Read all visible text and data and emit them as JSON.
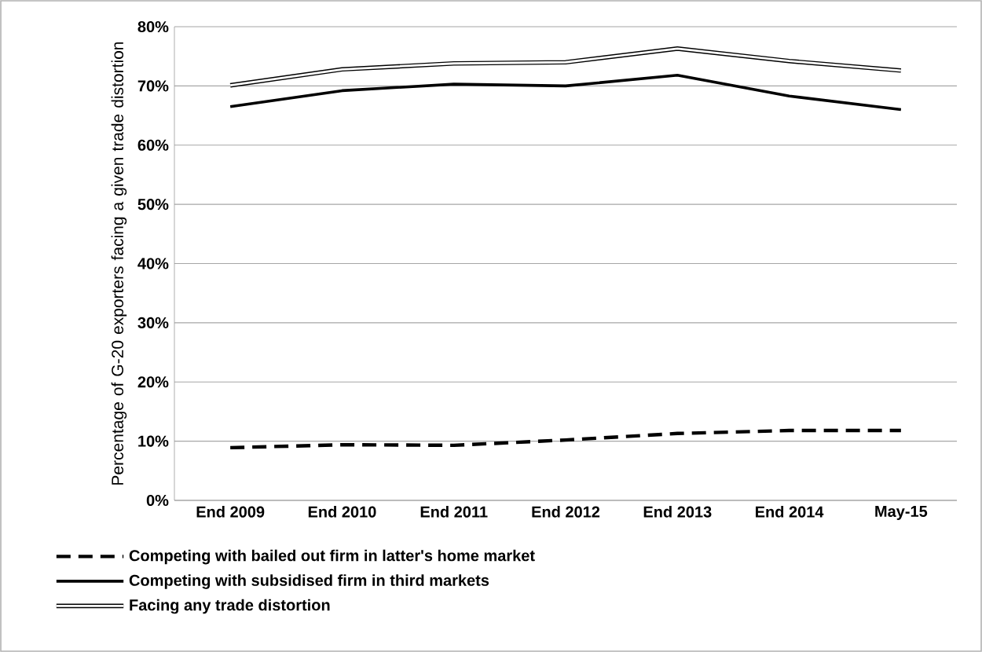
{
  "chart_data": {
    "type": "line",
    "ylabel": "Percentage of G-20 exporters facing a given trade distortion",
    "categories": [
      "End 2009",
      "End 2010",
      "End 2011",
      "End 2012",
      "End 2013",
      "End 2014",
      "May-15"
    ],
    "series": [
      {
        "name": "Competing with bailed out firm in latter's home market",
        "color": "#000000",
        "line_style": "dashed",
        "values": [
          8.9,
          9.4,
          9.3,
          10.2,
          11.3,
          11.8,
          11.8
        ]
      },
      {
        "name": "Competing with subsidised firm in third markets",
        "color": "#000000",
        "line_style": "solid",
        "values": [
          66.5,
          69.2,
          70.3,
          70.0,
          71.8,
          68.3,
          66.0
        ]
      },
      {
        "name": "Facing any trade distortion",
        "color": "#000000",
        "line_style": "solid",
        "values": [
          70.1,
          72.8,
          73.8,
          74.0,
          76.3,
          74.2,
          72.6
        ]
      }
    ],
    "ylim": [
      0,
      80
    ],
    "yticks": [
      {
        "value": 0,
        "label": "0%"
      },
      {
        "value": 10,
        "label": "10%"
      },
      {
        "value": 20,
        "label": "20%"
      },
      {
        "value": 30,
        "label": "30%"
      },
      {
        "value": 40,
        "label": "40%"
      },
      {
        "value": 50,
        "label": "50%"
      },
      {
        "value": 60,
        "label": "60%"
      },
      {
        "value": 70,
        "label": "70%"
      },
      {
        "value": 80,
        "label": "80%"
      }
    ],
    "grid": "y",
    "legend": "bottom",
    "marker": "none"
  }
}
